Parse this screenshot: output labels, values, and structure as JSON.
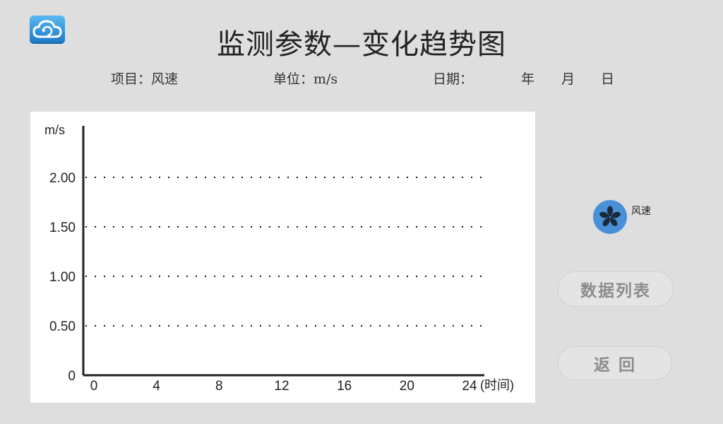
{
  "header": {
    "title": "监测参数—变化趋势图",
    "logo_icon": "cloud-refresh-icon"
  },
  "meta": {
    "item": "项目：风速",
    "unit": "单位：m/s",
    "date_label": "日期：",
    "year": "年",
    "month": "月",
    "day": "日"
  },
  "chart_data": {
    "type": "line",
    "x_label": "(时间)",
    "y_unit": "m/s",
    "x_ticks": [
      "0",
      "4",
      "8",
      "12",
      "16",
      "20",
      "24"
    ],
    "x_range": [
      0,
      24
    ],
    "y_ticks": [
      "0",
      "0.50",
      "1.00",
      "1.50",
      "2.00"
    ],
    "y_tick_values": [
      0,
      0.5,
      1.0,
      1.5,
      2.0
    ],
    "y_range": [
      0,
      2.5
    ],
    "grid": "dotted horizontal",
    "series": []
  },
  "legend": {
    "label": "风速",
    "icon": "fan-icon",
    "color": "#4a90d9"
  },
  "buttons": {
    "data_list": "数据列表",
    "back": "返回"
  }
}
